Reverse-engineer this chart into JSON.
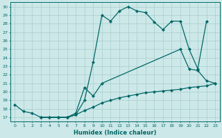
{
  "xlabel": "Humidex (Indice chaleur)",
  "background_color": "#cce8e8",
  "grid_color": "#aacccc",
  "line_color": "#006666",
  "xlim": [
    -0.5,
    23.5
  ],
  "ylim": [
    16.5,
    30.5
  ],
  "yticks": [
    17,
    18,
    19,
    20,
    21,
    22,
    23,
    24,
    25,
    26,
    27,
    28,
    29,
    30
  ],
  "xticks": [
    0,
    1,
    2,
    3,
    4,
    5,
    6,
    7,
    8,
    9,
    10,
    11,
    12,
    13,
    14,
    15,
    16,
    17,
    18,
    19,
    20,
    21,
    22,
    23
  ],
  "curve1_x": [
    0,
    1,
    2,
    3,
    4,
    5,
    6,
    7,
    8,
    9,
    10,
    11,
    12,
    13,
    14,
    15,
    16,
    17,
    18,
    19,
    20,
    21,
    22
  ],
  "curve1_y": [
    18.5,
    17.7,
    17.5,
    17.0,
    17.0,
    17.0,
    17.0,
    17.3,
    19.0,
    23.5,
    29.0,
    28.3,
    29.5,
    30.0,
    29.5,
    29.3,
    28.2,
    27.3,
    28.3,
    28.3,
    25.0,
    22.7,
    28.3
  ],
  "curve2_x": [
    3,
    4,
    5,
    6,
    7,
    8,
    9,
    10,
    19,
    20,
    21,
    22,
    23
  ],
  "curve2_y": [
    17.0,
    17.0,
    17.0,
    17.0,
    17.5,
    20.5,
    19.5,
    21.0,
    25.0,
    22.7,
    22.5,
    21.3,
    21.0
  ],
  "curve3_x": [
    3,
    4,
    5,
    6,
    7,
    8,
    9,
    10,
    11,
    12,
    13,
    14,
    15,
    16,
    17,
    18,
    19,
    20,
    21,
    22,
    23
  ],
  "curve3_y": [
    17.0,
    17.0,
    17.0,
    17.0,
    17.3,
    17.8,
    18.2,
    18.7,
    19.0,
    19.3,
    19.5,
    19.7,
    19.9,
    20.0,
    20.1,
    20.2,
    20.3,
    20.5,
    20.6,
    20.7,
    21.0
  ]
}
